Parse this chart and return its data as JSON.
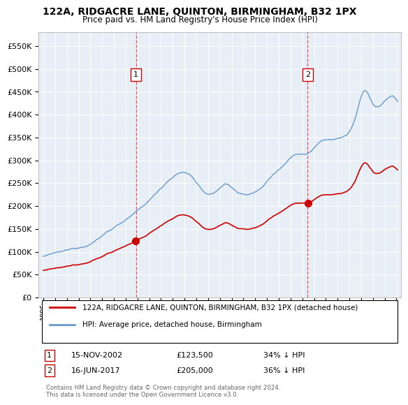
{
  "title": "122A, RIDGACRE LANE, QUINTON, BIRMINGHAM, B32 1PX",
  "subtitle": "Price paid vs. HM Land Registry's House Price Index (HPI)",
  "ylabel_ticks": [
    "£0",
    "£50K",
    "£100K",
    "£150K",
    "£200K",
    "£250K",
    "£300K",
    "£350K",
    "£400K",
    "£450K",
    "£500K",
    "£550K"
  ],
  "ytick_values": [
    0,
    50000,
    100000,
    150000,
    200000,
    250000,
    300000,
    350000,
    400000,
    450000,
    500000,
    550000
  ],
  "ylim": [
    0,
    580000
  ],
  "background_color": "#e8eef5",
  "line1_color": "#cc0000",
  "line2_color": "#6699cc",
  "legend1_label": "122A, RIDGACRE LANE, QUINTON, BIRMINGHAM, B32 1PX (detached house)",
  "legend2_label": "HPI: Average price, detached house, Birmingham",
  "t1": 2002.88,
  "t2": 2017.46,
  "price1": 123500,
  "price2": 205000,
  "row1": [
    "1",
    "15-NOV-2002",
    "£123,500",
    "34% ↓ HPI"
  ],
  "row2": [
    "2",
    "16-JUN-2017",
    "£205,000",
    "36% ↓ HPI"
  ],
  "footer": "Contains HM Land Registry data © Crown copyright and database right 2024.\nThis data is licensed under the Open Government Licence v3.0.",
  "xstart": 1994.6,
  "xend": 2025.4
}
